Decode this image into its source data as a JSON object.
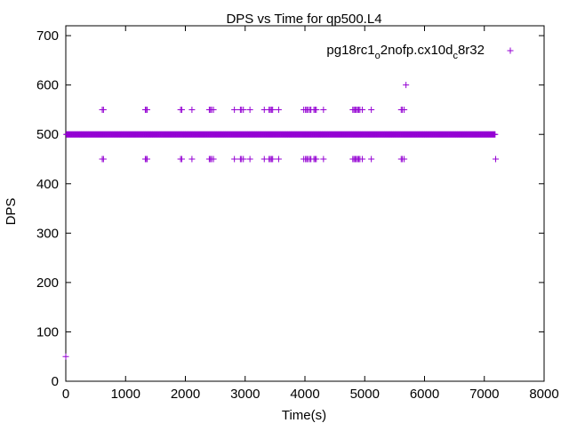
{
  "chart_data": {
    "type": "scatter",
    "title": "DPS vs Time for qp500.L4",
    "xlabel": "Time(s)",
    "ylabel": "DPS",
    "xlim": [
      0,
      8000
    ],
    "ylim": [
      0,
      720
    ],
    "x_ticks": [
      0,
      1000,
      2000,
      3000,
      4000,
      5000,
      6000,
      7000,
      8000
    ],
    "y_ticks": [
      0,
      100,
      200,
      300,
      400,
      500,
      600,
      700
    ],
    "x_tick_labels": [
      "0",
      "1000",
      "2000",
      "3000",
      "4000",
      "5000",
      "6000",
      "7000",
      "8000"
    ],
    "y_tick_labels": [
      "0",
      "100",
      "200",
      "300",
      "400",
      "500",
      "600",
      "700"
    ],
    "grid": false,
    "legend_position": "top-right",
    "marker": "plus",
    "color": "#9400d3",
    "series": [
      {
        "name": "pg18rc1_o2nofp.cx10d_c8r32",
        "legend_parts": [
          {
            "text": "pg18rc1",
            "sub": false
          },
          {
            "text": "o",
            "sub": true
          },
          {
            "text": "2nofp.cx10d",
            "sub": false
          },
          {
            "text": "c",
            "sub": true
          },
          {
            "text": "8r32",
            "sub": false
          }
        ],
        "steady": {
          "y": 500,
          "x_start": 10,
          "x_end": 7180,
          "step": 10
        },
        "points": [
          {
            "x": 0,
            "y": 50
          },
          {
            "x": 610,
            "y": 550
          },
          {
            "x": 630,
            "y": 550
          },
          {
            "x": 610,
            "y": 450
          },
          {
            "x": 630,
            "y": 450
          },
          {
            "x": 1330,
            "y": 550
          },
          {
            "x": 1340,
            "y": 550
          },
          {
            "x": 1360,
            "y": 550
          },
          {
            "x": 1330,
            "y": 450
          },
          {
            "x": 1340,
            "y": 450
          },
          {
            "x": 1360,
            "y": 450
          },
          {
            "x": 1920,
            "y": 550
          },
          {
            "x": 1940,
            "y": 550
          },
          {
            "x": 1920,
            "y": 450
          },
          {
            "x": 1940,
            "y": 450
          },
          {
            "x": 2110,
            "y": 550
          },
          {
            "x": 2110,
            "y": 450
          },
          {
            "x": 2400,
            "y": 550
          },
          {
            "x": 2420,
            "y": 550
          },
          {
            "x": 2440,
            "y": 550
          },
          {
            "x": 2470,
            "y": 550
          },
          {
            "x": 2400,
            "y": 450
          },
          {
            "x": 2420,
            "y": 450
          },
          {
            "x": 2440,
            "y": 450
          },
          {
            "x": 2470,
            "y": 450
          },
          {
            "x": 2820,
            "y": 550
          },
          {
            "x": 2920,
            "y": 550
          },
          {
            "x": 2940,
            "y": 550
          },
          {
            "x": 2970,
            "y": 550
          },
          {
            "x": 3080,
            "y": 550
          },
          {
            "x": 2820,
            "y": 450
          },
          {
            "x": 2920,
            "y": 450
          },
          {
            "x": 2940,
            "y": 450
          },
          {
            "x": 2970,
            "y": 450
          },
          {
            "x": 3080,
            "y": 450
          },
          {
            "x": 3320,
            "y": 550
          },
          {
            "x": 3400,
            "y": 550
          },
          {
            "x": 3420,
            "y": 550
          },
          {
            "x": 3440,
            "y": 550
          },
          {
            "x": 3460,
            "y": 550
          },
          {
            "x": 3560,
            "y": 550
          },
          {
            "x": 3320,
            "y": 450
          },
          {
            "x": 3400,
            "y": 450
          },
          {
            "x": 3420,
            "y": 450
          },
          {
            "x": 3440,
            "y": 450
          },
          {
            "x": 3460,
            "y": 450
          },
          {
            "x": 3560,
            "y": 450
          },
          {
            "x": 3980,
            "y": 550
          },
          {
            "x": 4010,
            "y": 550
          },
          {
            "x": 4030,
            "y": 550
          },
          {
            "x": 4050,
            "y": 550
          },
          {
            "x": 4080,
            "y": 550
          },
          {
            "x": 4100,
            "y": 550
          },
          {
            "x": 4150,
            "y": 550
          },
          {
            "x": 4170,
            "y": 550
          },
          {
            "x": 4190,
            "y": 550
          },
          {
            "x": 4310,
            "y": 550
          },
          {
            "x": 3980,
            "y": 450
          },
          {
            "x": 4010,
            "y": 450
          },
          {
            "x": 4030,
            "y": 450
          },
          {
            "x": 4050,
            "y": 450
          },
          {
            "x": 4080,
            "y": 450
          },
          {
            "x": 4100,
            "y": 450
          },
          {
            "x": 4150,
            "y": 450
          },
          {
            "x": 4170,
            "y": 450
          },
          {
            "x": 4190,
            "y": 450
          },
          {
            "x": 4310,
            "y": 450
          },
          {
            "x": 4800,
            "y": 550
          },
          {
            "x": 4820,
            "y": 550
          },
          {
            "x": 4840,
            "y": 550
          },
          {
            "x": 4860,
            "y": 550
          },
          {
            "x": 4880,
            "y": 550
          },
          {
            "x": 4900,
            "y": 550
          },
          {
            "x": 4920,
            "y": 550
          },
          {
            "x": 4960,
            "y": 550
          },
          {
            "x": 5110,
            "y": 550
          },
          {
            "x": 4800,
            "y": 450
          },
          {
            "x": 4820,
            "y": 450
          },
          {
            "x": 4840,
            "y": 450
          },
          {
            "x": 4860,
            "y": 450
          },
          {
            "x": 4880,
            "y": 450
          },
          {
            "x": 4900,
            "y": 450
          },
          {
            "x": 4920,
            "y": 450
          },
          {
            "x": 4960,
            "y": 450
          },
          {
            "x": 5110,
            "y": 450
          },
          {
            "x": 5610,
            "y": 550
          },
          {
            "x": 5630,
            "y": 550
          },
          {
            "x": 5660,
            "y": 550
          },
          {
            "x": 5610,
            "y": 450
          },
          {
            "x": 5630,
            "y": 450
          },
          {
            "x": 5660,
            "y": 450
          },
          {
            "x": 5690,
            "y": 600
          },
          {
            "x": 7190,
            "y": 450
          }
        ]
      }
    ]
  }
}
